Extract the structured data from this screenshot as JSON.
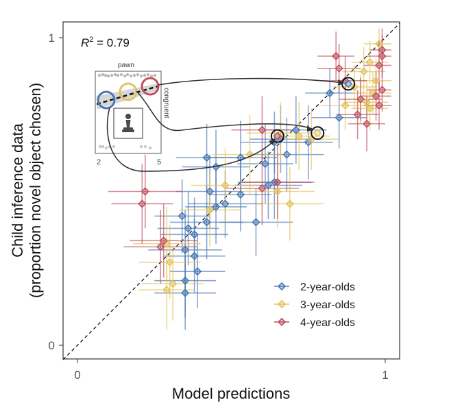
{
  "chart_data": {
    "type": "scatter",
    "title": "",
    "xlabel": "Model predictions",
    "ylabel_line1": "Child inference data",
    "ylabel_line2": "(proportion novel object chosen)",
    "xlim": [
      0,
      1
    ],
    "ylim": [
      0,
      1
    ],
    "x_ticks": [
      "0",
      "1"
    ],
    "y_ticks": [
      "0",
      "1"
    ],
    "annotation": {
      "r2_label": "R",
      "r2_sup": "2",
      "r2_value": " = 0.79"
    },
    "colors": {
      "2-year-olds": "#4a78b5",
      "3-year-olds": "#e3c35a",
      "4-year-olds": "#c0505f",
      "identity": "#111111"
    },
    "series": [
      {
        "name": "2-year-olds",
        "points": [
          {
            "x": 0.82,
            "y": 0.82,
            "xerr": 0.08,
            "yerr": 0.08
          },
          {
            "x": 0.85,
            "y": 0.74,
            "xerr": 0.09,
            "yerr": 0.1
          },
          {
            "x": 0.71,
            "y": 0.7,
            "xerr": 0.1,
            "yerr": 0.11
          },
          {
            "x": 0.75,
            "y": 0.66,
            "xerr": 0.08,
            "yerr": 0.12
          },
          {
            "x": 0.68,
            "y": 0.62,
            "xerr": 0.12,
            "yerr": 0.12
          },
          {
            "x": 0.64,
            "y": 0.66,
            "xerr": 0.11,
            "yerr": 0.1
          },
          {
            "x": 0.61,
            "y": 0.59,
            "xerr": 0.09,
            "yerr": 0.13
          },
          {
            "x": 0.53,
            "y": 0.61,
            "xerr": 0.12,
            "yerr": 0.12
          },
          {
            "x": 0.42,
            "y": 0.61,
            "xerr": 0.1,
            "yerr": 0.11
          },
          {
            "x": 0.45,
            "y": 0.58,
            "xerr": 0.11,
            "yerr": 0.12
          },
          {
            "x": 0.64,
            "y": 0.53,
            "xerr": 0.12,
            "yerr": 0.12
          },
          {
            "x": 0.62,
            "y": 0.52,
            "xerr": 0.11,
            "yerr": 0.11
          },
          {
            "x": 0.43,
            "y": 0.5,
            "xerr": 0.11,
            "yerr": 0.12
          },
          {
            "x": 0.53,
            "y": 0.49,
            "xerr": 0.1,
            "yerr": 0.12
          },
          {
            "x": 0.48,
            "y": 0.46,
            "xerr": 0.12,
            "yerr": 0.11
          },
          {
            "x": 0.45,
            "y": 0.45,
            "xerr": 0.1,
            "yerr": 0.12
          },
          {
            "x": 0.42,
            "y": 0.4,
            "xerr": 0.12,
            "yerr": 0.12
          },
          {
            "x": 0.34,
            "y": 0.42,
            "xerr": 0.09,
            "yerr": 0.12
          },
          {
            "x": 0.58,
            "y": 0.4,
            "xerr": 0.12,
            "yerr": 0.11
          },
          {
            "x": 0.36,
            "y": 0.38,
            "xerr": 0.1,
            "yerr": 0.12
          },
          {
            "x": 0.38,
            "y": 0.36,
            "xerr": 0.11,
            "yerr": 0.12
          },
          {
            "x": 0.35,
            "y": 0.31,
            "xerr": 0.12,
            "yerr": 0.13
          },
          {
            "x": 0.38,
            "y": 0.29,
            "xerr": 0.1,
            "yerr": 0.12
          },
          {
            "x": 0.35,
            "y": 0.21,
            "xerr": 0.1,
            "yerr": 0.12
          },
          {
            "x": 0.35,
            "y": 0.17,
            "xerr": 0.1,
            "yerr": 0.12
          },
          {
            "x": 0.39,
            "y": 0.24,
            "xerr": 0.09,
            "yerr": 0.12
          },
          {
            "x": 0.66,
            "y": 0.67,
            "xerr": 0.1,
            "yerr": 0.11
          }
        ]
      },
      {
        "name": "3-year-olds",
        "points": [
          {
            "x": 0.98,
            "y": 0.98,
            "xerr": 0.05,
            "yerr": 0.06
          },
          {
            "x": 0.95,
            "y": 0.92,
            "xerr": 0.06,
            "yerr": 0.07
          },
          {
            "x": 0.93,
            "y": 0.89,
            "xerr": 0.07,
            "yerr": 0.08
          },
          {
            "x": 0.97,
            "y": 0.86,
            "xerr": 0.06,
            "yerr": 0.07
          },
          {
            "x": 0.9,
            "y": 0.84,
            "xerr": 0.07,
            "yerr": 0.07
          },
          {
            "x": 0.96,
            "y": 0.82,
            "xerr": 0.07,
            "yerr": 0.07
          },
          {
            "x": 0.92,
            "y": 0.8,
            "xerr": 0.06,
            "yerr": 0.08
          },
          {
            "x": 0.94,
            "y": 0.79,
            "xerr": 0.07,
            "yerr": 0.07
          },
          {
            "x": 0.87,
            "y": 0.78,
            "xerr": 0.08,
            "yerr": 0.08
          },
          {
            "x": 0.95,
            "y": 0.77,
            "xerr": 0.06,
            "yerr": 0.07
          },
          {
            "x": 0.66,
            "y": 0.69,
            "xerr": 0.11,
            "yerr": 0.1
          },
          {
            "x": 0.72,
            "y": 0.68,
            "xerr": 0.1,
            "yerr": 0.11
          },
          {
            "x": 0.76,
            "y": 0.67,
            "xerr": 0.09,
            "yerr": 0.1
          },
          {
            "x": 0.56,
            "y": 0.62,
            "xerr": 0.12,
            "yerr": 0.13
          },
          {
            "x": 0.48,
            "y": 0.52,
            "xerr": 0.11,
            "yerr": 0.12
          },
          {
            "x": 0.65,
            "y": 0.5,
            "xerr": 0.12,
            "yerr": 0.12
          },
          {
            "x": 0.69,
            "y": 0.46,
            "xerr": 0.11,
            "yerr": 0.12
          },
          {
            "x": 0.43,
            "y": 0.44,
            "xerr": 0.1,
            "yerr": 0.12
          },
          {
            "x": 0.29,
            "y": 0.33,
            "xerr": 0.11,
            "yerr": 0.12
          },
          {
            "x": 0.3,
            "y": 0.27,
            "xerr": 0.1,
            "yerr": 0.12
          },
          {
            "x": 0.31,
            "y": 0.2,
            "xerr": 0.1,
            "yerr": 0.12
          },
          {
            "x": 0.29,
            "y": 0.18,
            "xerr": 0.09,
            "yerr": 0.13
          }
        ]
      },
      {
        "name": "4-year-olds",
        "points": [
          {
            "x": 0.99,
            "y": 0.96,
            "xerr": 0.04,
            "yerr": 0.07
          },
          {
            "x": 0.99,
            "y": 0.94,
            "xerr": 0.05,
            "yerr": 0.07
          },
          {
            "x": 0.84,
            "y": 0.94,
            "xerr": 0.06,
            "yerr": 0.08
          },
          {
            "x": 0.98,
            "y": 0.91,
            "xerr": 0.05,
            "yerr": 0.08
          },
          {
            "x": 0.85,
            "y": 0.9,
            "xerr": 0.07,
            "yerr": 0.08
          },
          {
            "x": 0.87,
            "y": 0.86,
            "xerr": 0.07,
            "yerr": 0.08
          },
          {
            "x": 0.99,
            "y": 0.83,
            "xerr": 0.05,
            "yerr": 0.07
          },
          {
            "x": 0.97,
            "y": 0.81,
            "xerr": 0.05,
            "yerr": 0.08
          },
          {
            "x": 0.92,
            "y": 0.8,
            "xerr": 0.07,
            "yerr": 0.07
          },
          {
            "x": 0.98,
            "y": 0.78,
            "xerr": 0.05,
            "yerr": 0.08
          },
          {
            "x": 0.91,
            "y": 0.75,
            "xerr": 0.07,
            "yerr": 0.08
          },
          {
            "x": 0.94,
            "y": 0.72,
            "xerr": 0.06,
            "yerr": 0.09
          },
          {
            "x": 0.6,
            "y": 0.7,
            "xerr": 0.1,
            "yerr": 0.11
          },
          {
            "x": 0.65,
            "y": 0.53,
            "xerr": 0.12,
            "yerr": 0.12
          },
          {
            "x": 0.6,
            "y": 0.51,
            "xerr": 0.12,
            "yerr": 0.12
          },
          {
            "x": 0.22,
            "y": 0.5,
            "xerr": 0.12,
            "yerr": 0.12
          },
          {
            "x": 0.21,
            "y": 0.46,
            "xerr": 0.1,
            "yerr": 0.13
          },
          {
            "x": 0.28,
            "y": 0.34,
            "xerr": 0.11,
            "yerr": 0.12
          },
          {
            "x": 0.27,
            "y": 0.32,
            "xerr": 0.12,
            "yerr": 0.12
          }
        ]
      }
    ],
    "highlighted_points": [
      {
        "x": 0.88,
        "y": 0.85,
        "color": "#4a78b5"
      },
      {
        "x": 0.78,
        "y": 0.69,
        "color": "#e3c35a"
      },
      {
        "x": 0.65,
        "y": 0.68,
        "color": "#c0505f"
      }
    ],
    "inset": {
      "title": "pawn",
      "side_label": "congruent",
      "x_ticks": [
        "2",
        "5"
      ],
      "circle_colors": [
        "#4a78b5",
        "#e3c35a",
        "#c0505f"
      ],
      "icon": "chess-pawn-icon"
    }
  }
}
